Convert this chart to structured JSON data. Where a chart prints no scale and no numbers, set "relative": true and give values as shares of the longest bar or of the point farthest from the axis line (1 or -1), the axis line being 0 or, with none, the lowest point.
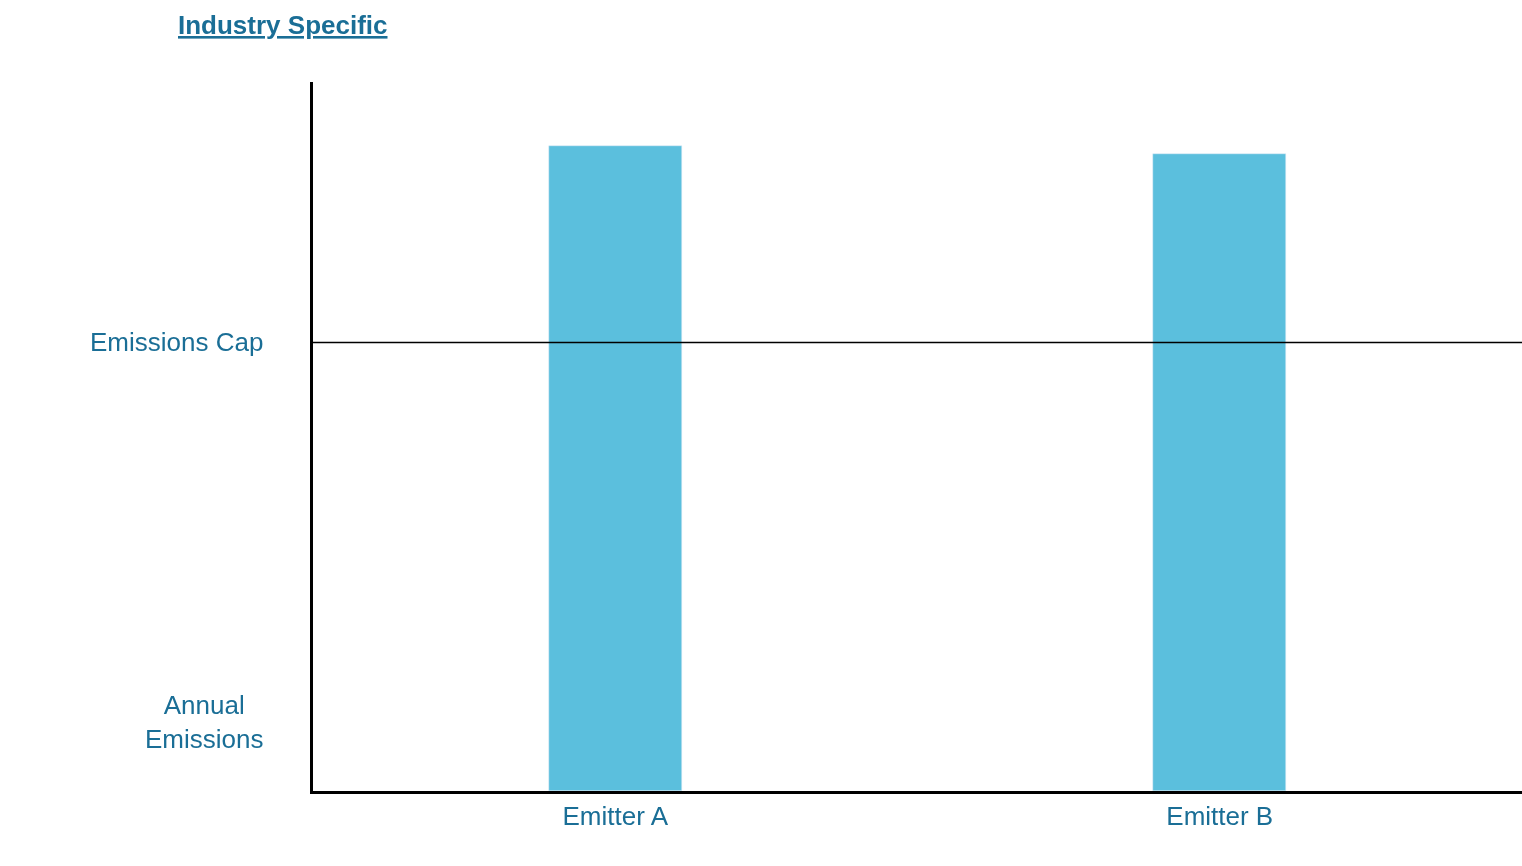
{
  "chart_data": {
    "type": "bar",
    "title": "Industry Specific",
    "ylabel": "Annual Emissions",
    "categories": [
      "Emitter A",
      "Emitter B"
    ],
    "values": [
      1,
      0.989
    ],
    "color": "#5bbfdd",
    "relative": true,
    "ref_lines": [
      {
        "axis": "y",
        "value": 0.696,
        "label": "Emissions Cap",
        "color": "#000000"
      }
    ]
  }
}
